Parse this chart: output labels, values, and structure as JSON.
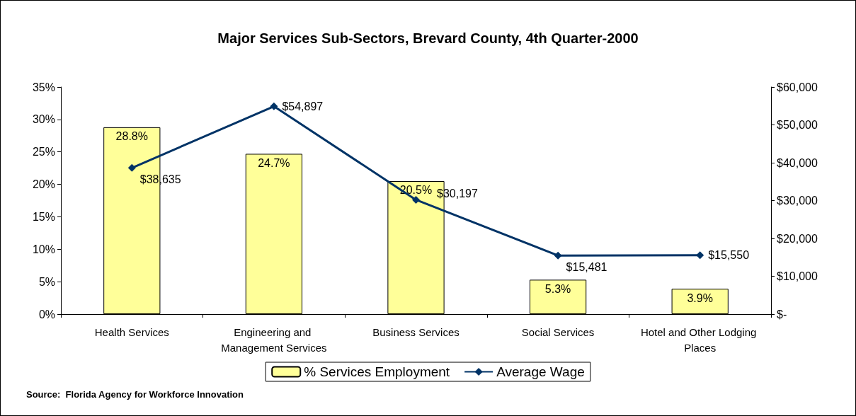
{
  "chart_data": {
    "type": "bar",
    "title": "Major Services Sub-Sectors, Brevard County, 4th Quarter-2000",
    "categories": [
      "Health Services",
      "Engineering and Management Services",
      "Business Services",
      "Social Services",
      "Hotel and Other Lodging Places"
    ],
    "series": [
      {
        "name": "% Services Employment",
        "color": "#ffff99",
        "values": [
          28.8,
          24.7,
          20.5,
          5.3,
          3.9
        ],
        "value_labels": [
          "28.8%",
          "24.7%",
          "20.5%",
          "5.3%",
          "3.9%"
        ]
      },
      {
        "name": "Average Wage",
        "type": "line",
        "axis": "y2",
        "color": "#003366",
        "marker": "diamond",
        "values": [
          38635,
          54897,
          30197,
          15481,
          15550
        ],
        "value_labels": [
          "$38,635",
          "$54,897",
          "$30,197",
          "$15,481",
          "$15,550"
        ]
      }
    ],
    "ylim": [
      0,
      35
    ],
    "yticks": [
      {
        "value": 0,
        "label": "0%"
      },
      {
        "value": 5,
        "label": "5%"
      },
      {
        "value": 10,
        "label": "10%"
      },
      {
        "value": 15,
        "label": "15%"
      },
      {
        "value": 20,
        "label": "20%"
      },
      {
        "value": 25,
        "label": "25%"
      },
      {
        "value": 30,
        "label": "30%"
      },
      {
        "value": 35,
        "label": "35%"
      }
    ],
    "y2lim": [
      0,
      60000
    ],
    "y2ticks": [
      {
        "value": 0,
        "label": "$-"
      },
      {
        "value": 10000,
        "label": "$10,000"
      },
      {
        "value": 20000,
        "label": "$20,000"
      },
      {
        "value": 30000,
        "label": "$30,000"
      },
      {
        "value": 40000,
        "label": "$40,000"
      },
      {
        "value": 50000,
        "label": "$50,000"
      },
      {
        "value": 60000,
        "label": "$60,000"
      }
    ],
    "legend": "bottom",
    "grid": false,
    "annotations": [
      "Source:  Florida Agency for Workforce Innovation"
    ]
  }
}
